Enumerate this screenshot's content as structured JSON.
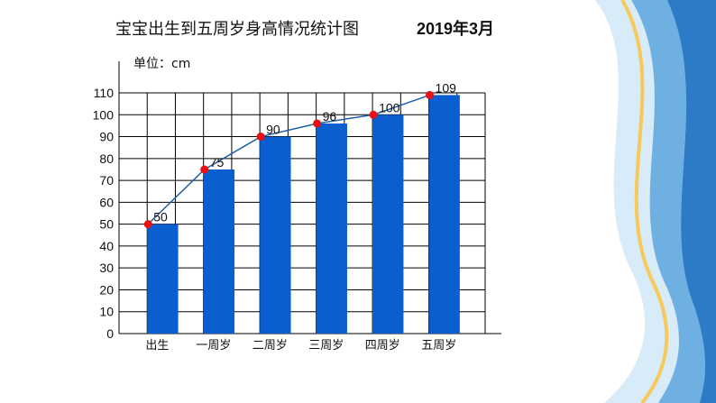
{
  "slide": {
    "title": "宝宝出生到五周岁身高情况统计图",
    "date": "2019年3月",
    "unit_label": "单位：cm"
  },
  "colors": {
    "bar": "#0a5fd0",
    "line": "#1c5fa8",
    "marker": "#e81010",
    "grid": "#000000",
    "decor_light": "#c9e3f5",
    "decor_mid": "#3a8fd3",
    "decor_accent": "#f7c85a"
  },
  "chart_data": {
    "type": "bar",
    "categories": [
      "出生",
      "一周岁",
      "二周岁",
      "三周岁",
      "四周岁",
      "五周岁"
    ],
    "series": [
      {
        "values": [
          50,
          75,
          90,
          96,
          100,
          109
        ],
        "kind": "bar"
      },
      {
        "values": [
          50,
          75,
          90,
          96,
          100,
          109
        ],
        "kind": "line"
      }
    ],
    "data_labels": [
      "50",
      "75",
      "90",
      "96",
      "100",
      "109"
    ],
    "yticks": [
      0,
      10,
      20,
      30,
      40,
      50,
      60,
      70,
      80,
      90,
      100,
      110
    ],
    "ylim": [
      0,
      110
    ],
    "grid": true,
    "title": "宝宝出生到五周岁身高情况统计图",
    "ylabel": "单位：cm",
    "xlabel": ""
  }
}
